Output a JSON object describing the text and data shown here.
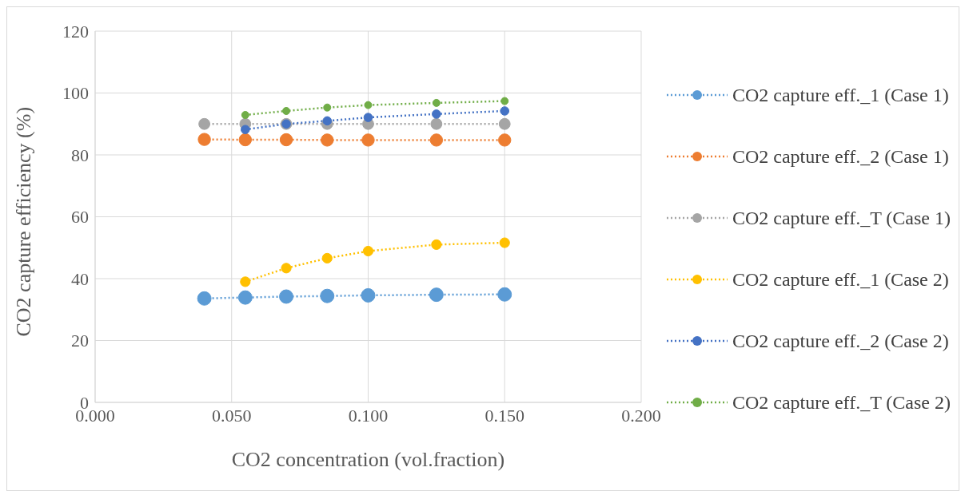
{
  "chart_data": {
    "type": "line",
    "xlabel": "CO2 concentration (vol.fraction)",
    "ylabel": "CO2 capture efficiency (%)",
    "x": [
      0.04,
      0.055,
      0.07,
      0.085,
      0.1,
      0.125,
      0.15
    ],
    "xlim": [
      0,
      0.2
    ],
    "xticks": [
      {
        "value": 0,
        "label": "0.000"
      },
      {
        "value": 0.05,
        "label": "0.050"
      },
      {
        "value": 0.1,
        "label": "0.100"
      },
      {
        "value": 0.15,
        "label": "0.150"
      },
      {
        "value": 0.2,
        "label": "0.200"
      }
    ],
    "ylim": [
      0,
      120
    ],
    "yticks": [
      0,
      20,
      40,
      60,
      80,
      100,
      120
    ],
    "grid": true,
    "legend": "right",
    "marker": "circle",
    "line_style": "dotted",
    "series": [
      {
        "name": "CO2 capture eff._1 (Case 1)",
        "color": "#5b9bd5",
        "values": [
          33.6,
          33.9,
          34.2,
          34.4,
          34.6,
          34.8,
          34.9
        ]
      },
      {
        "name": "CO2 capture eff._2 (Case 1)",
        "color": "#ed7d31",
        "values": [
          85.0,
          84.9,
          84.9,
          84.8,
          84.8,
          84.8,
          84.8
        ]
      },
      {
        "name": "CO2 capture eff._T (Case 1)",
        "color": "#a5a5a5",
        "values": [
          90.0,
          90.0,
          90.0,
          90.0,
          90.0,
          90.0,
          90.0
        ]
      },
      {
        "name": "CO2 capture eff._1 (Case 2)",
        "color": "#ffc000",
        "values": [
          null,
          39.0,
          43.4,
          46.6,
          48.9,
          51.0,
          51.6
        ]
      },
      {
        "name": "CO2 capture eff._2 (Case 2)",
        "color": "#4472c4",
        "values": [
          null,
          88.2,
          90.0,
          91.0,
          92.1,
          93.2,
          94.2
        ]
      },
      {
        "name": "CO2 capture eff._T (Case 2)",
        "color": "#70ad47",
        "values": [
          null,
          92.9,
          94.2,
          95.3,
          96.1,
          96.8,
          97.4
        ]
      }
    ]
  }
}
